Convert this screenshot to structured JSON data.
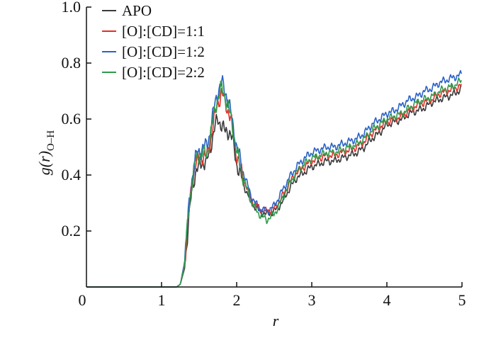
{
  "chart_data": {
    "type": "line",
    "xlabel": "r",
    "ylabel": "g(r)",
    "ylabel_sub": "O–H",
    "xlim": [
      0,
      5
    ],
    "ylim": [
      0,
      1.0
    ],
    "x_ticks": [
      0,
      1,
      2,
      3,
      4,
      5
    ],
    "x_tick_labels": [
      "0",
      "1",
      "2",
      "3",
      "4",
      "5"
    ],
    "y_ticks": [
      0.2,
      0.4,
      0.6,
      0.8,
      1.0
    ],
    "y_tick_labels": [
      "0.2",
      "0.4",
      "0.6",
      "0.8",
      "1.0"
    ],
    "legend_position": "top-left",
    "grid": false,
    "series": [
      {
        "name": "APO",
        "color": "#3a3a3a",
        "x": [
          0,
          1.2,
          1.25,
          1.3,
          1.35,
          1.4,
          1.45,
          1.5,
          1.55,
          1.6,
          1.65,
          1.7,
          1.75,
          1.8,
          1.85,
          1.9,
          1.95,
          2.0,
          2.1,
          2.2,
          2.3,
          2.4,
          2.5,
          2.6,
          2.7,
          2.8,
          2.9,
          3.0,
          3.1,
          3.2,
          3.3,
          3.4,
          3.5,
          3.6,
          3.7,
          3.8,
          3.9,
          4.0,
          4.1,
          4.2,
          4.3,
          4.4,
          4.5,
          4.6,
          4.7,
          4.8,
          4.9,
          5.0
        ],
        "y": [
          0,
          0,
          0.01,
          0.06,
          0.2,
          0.34,
          0.41,
          0.43,
          0.45,
          0.44,
          0.5,
          0.56,
          0.6,
          0.58,
          0.55,
          0.56,
          0.52,
          0.44,
          0.36,
          0.3,
          0.27,
          0.26,
          0.27,
          0.3,
          0.35,
          0.39,
          0.41,
          0.43,
          0.44,
          0.45,
          0.45,
          0.46,
          0.47,
          0.48,
          0.5,
          0.53,
          0.55,
          0.58,
          0.59,
          0.6,
          0.62,
          0.63,
          0.64,
          0.66,
          0.67,
          0.68,
          0.69,
          0.71
        ]
      },
      {
        "name": "[O]:[CD]=1:1",
        "color": "#e0302a",
        "x": [
          0,
          1.2,
          1.25,
          1.3,
          1.35,
          1.4,
          1.45,
          1.5,
          1.55,
          1.6,
          1.65,
          1.7,
          1.75,
          1.8,
          1.85,
          1.9,
          1.95,
          2.0,
          2.1,
          2.2,
          2.3,
          2.4,
          2.5,
          2.6,
          2.7,
          2.8,
          2.9,
          3.0,
          3.1,
          3.2,
          3.3,
          3.4,
          3.5,
          3.6,
          3.7,
          3.8,
          3.9,
          4.0,
          4.1,
          4.2,
          4.3,
          4.4,
          4.5,
          4.6,
          4.7,
          4.8,
          4.9,
          5.0
        ],
        "y": [
          0,
          0,
          0.01,
          0.07,
          0.22,
          0.36,
          0.44,
          0.46,
          0.47,
          0.46,
          0.52,
          0.6,
          0.66,
          0.69,
          0.66,
          0.62,
          0.56,
          0.47,
          0.38,
          0.31,
          0.28,
          0.27,
          0.28,
          0.32,
          0.37,
          0.41,
          0.43,
          0.45,
          0.46,
          0.47,
          0.47,
          0.48,
          0.49,
          0.5,
          0.52,
          0.55,
          0.57,
          0.59,
          0.6,
          0.61,
          0.63,
          0.65,
          0.66,
          0.67,
          0.69,
          0.7,
          0.71,
          0.72
        ]
      },
      {
        "name": "[O]:[CD]=1:2",
        "color": "#2a62c8",
        "x": [
          0,
          1.2,
          1.25,
          1.3,
          1.35,
          1.4,
          1.45,
          1.5,
          1.55,
          1.6,
          1.65,
          1.7,
          1.75,
          1.8,
          1.85,
          1.9,
          1.95,
          2.0,
          2.1,
          2.2,
          2.3,
          2.4,
          2.5,
          2.6,
          2.7,
          2.8,
          2.9,
          3.0,
          3.1,
          3.2,
          3.3,
          3.4,
          3.5,
          3.6,
          3.7,
          3.8,
          3.9,
          4.0,
          4.1,
          4.2,
          4.3,
          4.4,
          4.5,
          4.6,
          4.7,
          4.8,
          4.9,
          5.0
        ],
        "y": [
          0,
          0,
          0.01,
          0.08,
          0.24,
          0.38,
          0.46,
          0.48,
          0.5,
          0.5,
          0.56,
          0.64,
          0.7,
          0.73,
          0.7,
          0.65,
          0.58,
          0.5,
          0.4,
          0.32,
          0.28,
          0.27,
          0.29,
          0.34,
          0.39,
          0.43,
          0.46,
          0.48,
          0.49,
          0.5,
          0.5,
          0.51,
          0.52,
          0.53,
          0.55,
          0.58,
          0.6,
          0.62,
          0.63,
          0.65,
          0.67,
          0.68,
          0.7,
          0.71,
          0.73,
          0.74,
          0.75,
          0.76
        ]
      },
      {
        "name": "[O]:[CD]=2:2",
        "color": "#2e9a4a",
        "x": [
          0,
          1.2,
          1.25,
          1.3,
          1.35,
          1.4,
          1.45,
          1.5,
          1.55,
          1.6,
          1.65,
          1.7,
          1.75,
          1.8,
          1.85,
          1.9,
          1.95,
          2.0,
          2.1,
          2.2,
          2.3,
          2.4,
          2.5,
          2.6,
          2.7,
          2.8,
          2.9,
          3.0,
          3.1,
          3.2,
          3.3,
          3.4,
          3.5,
          3.6,
          3.7,
          3.8,
          3.9,
          4.0,
          4.1,
          4.2,
          4.3,
          4.4,
          4.5,
          4.6,
          4.7,
          4.8,
          4.9,
          5.0
        ],
        "y": [
          0,
          0,
          0.01,
          0.07,
          0.23,
          0.37,
          0.45,
          0.47,
          0.48,
          0.47,
          0.54,
          0.62,
          0.68,
          0.71,
          0.68,
          0.63,
          0.57,
          0.48,
          0.38,
          0.3,
          0.26,
          0.24,
          0.26,
          0.31,
          0.37,
          0.41,
          0.44,
          0.46,
          0.47,
          0.48,
          0.48,
          0.49,
          0.5,
          0.51,
          0.53,
          0.56,
          0.58,
          0.6,
          0.61,
          0.62,
          0.64,
          0.66,
          0.67,
          0.68,
          0.7,
          0.71,
          0.72,
          0.74
        ]
      }
    ]
  }
}
